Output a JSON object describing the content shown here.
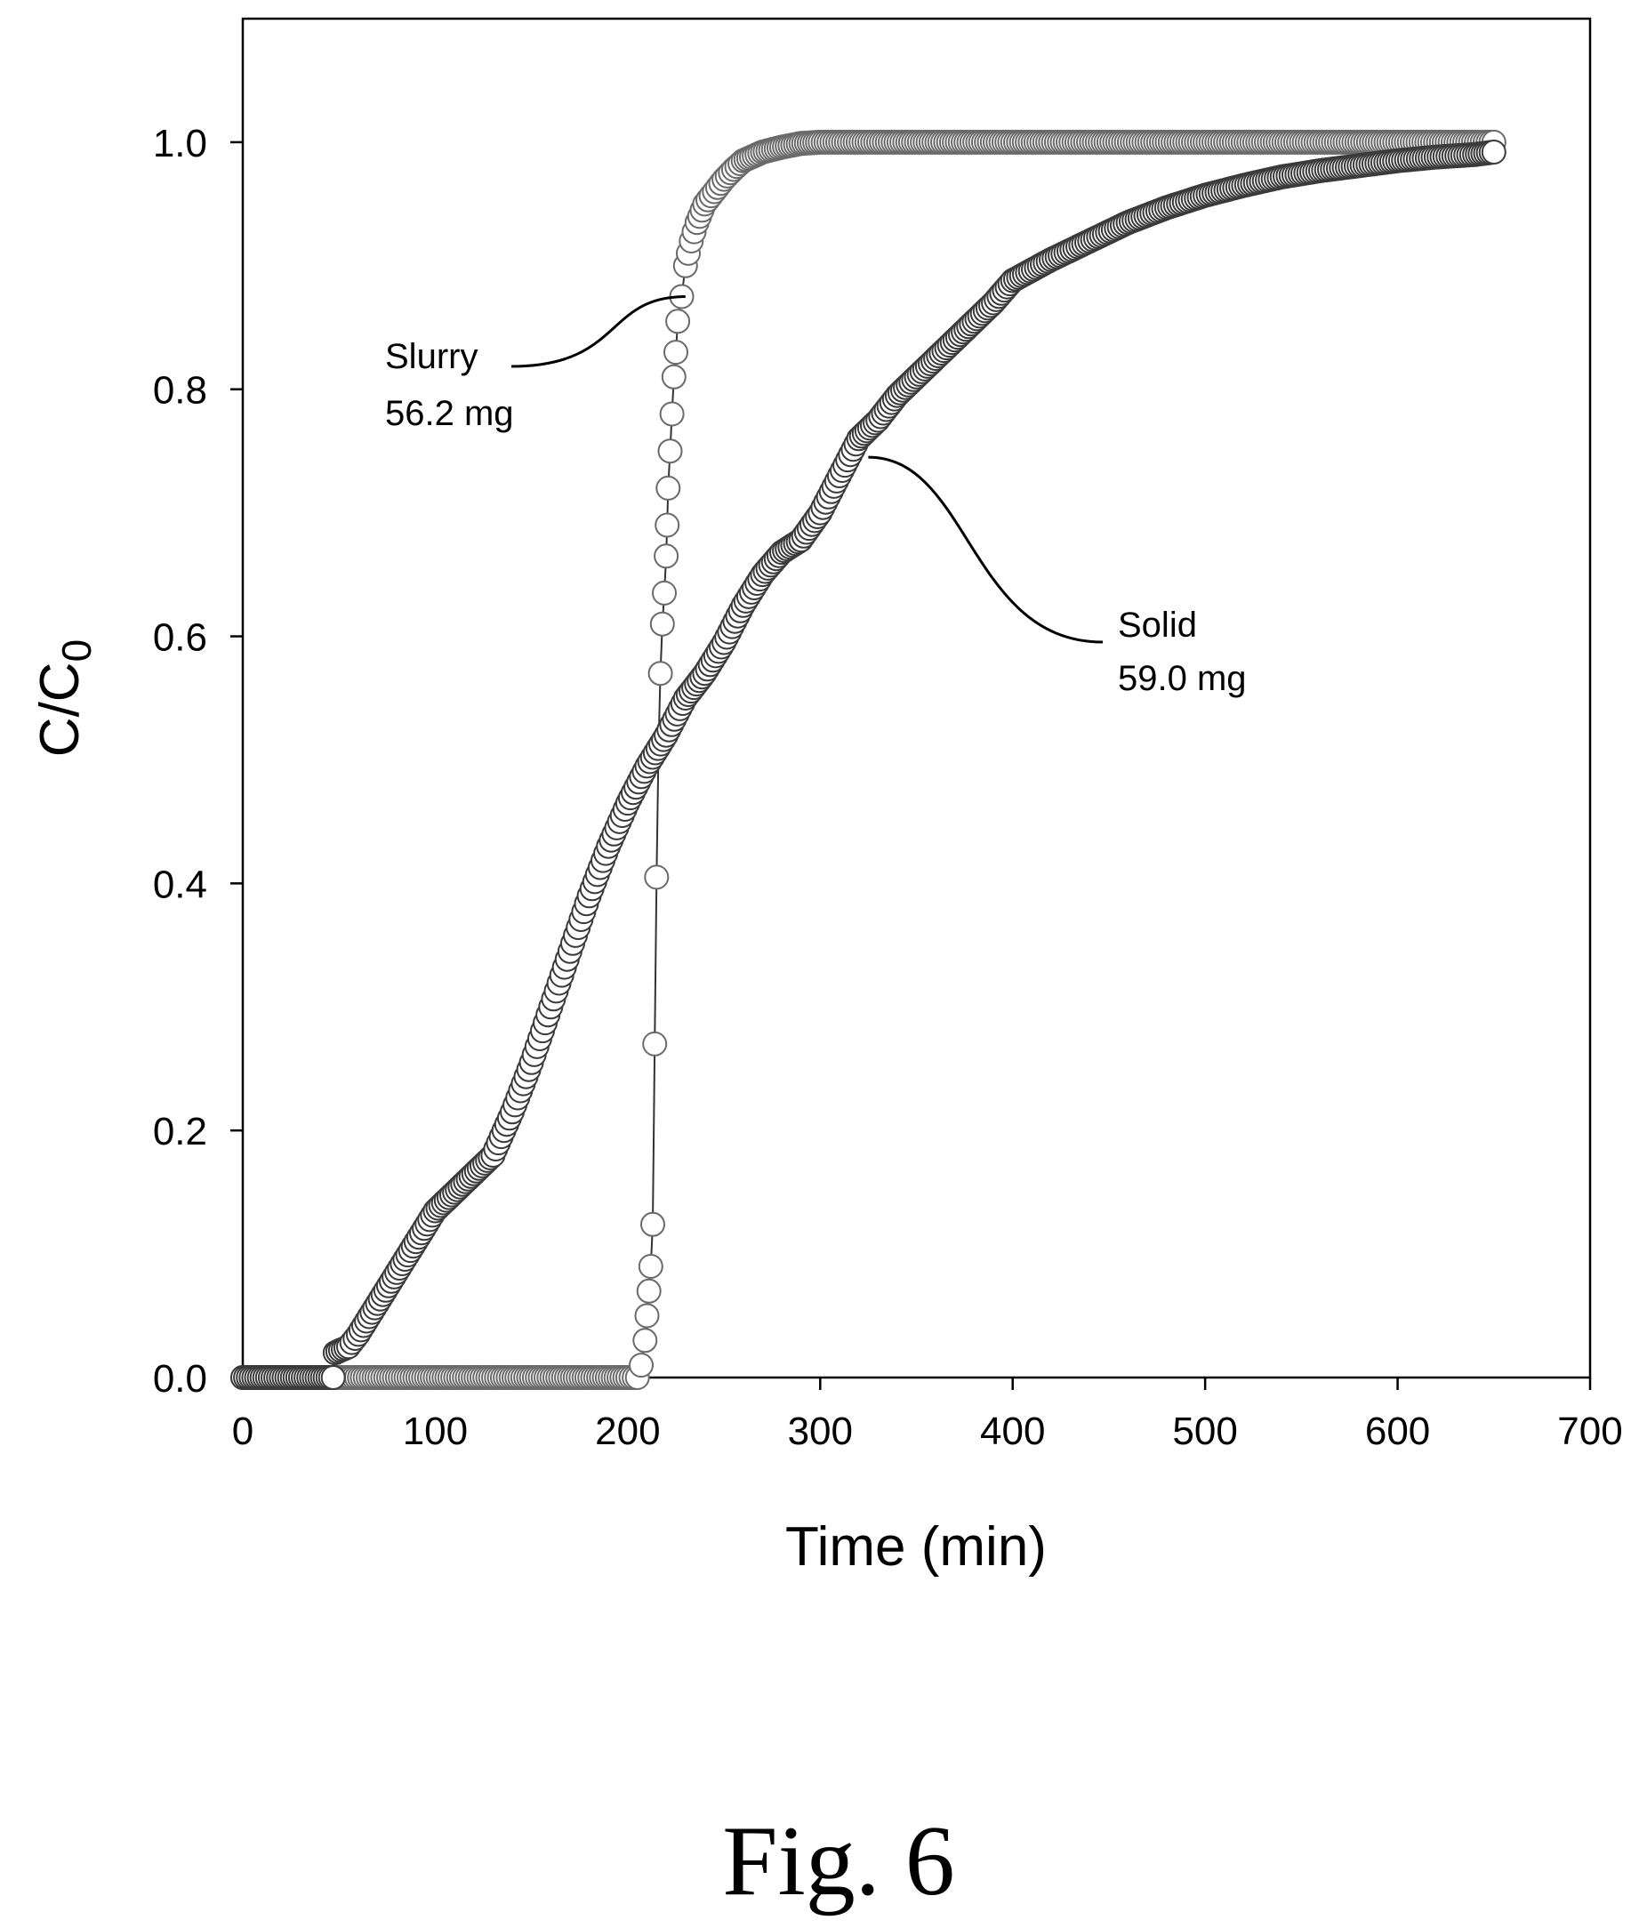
{
  "chart_data": {
    "type": "scatter",
    "xlabel": "Time (min)",
    "ylabel_main": "C/C",
    "ylabel_sub": "0",
    "xlim": [
      0,
      700
    ],
    "ylim": [
      0,
      1.1
    ],
    "xticks": [
      "0",
      "100",
      "200",
      "300",
      "400",
      "500",
      "600",
      "700"
    ],
    "yticks": [
      "0.0",
      "0.2",
      "0.4",
      "0.6",
      "0.8",
      "1.0"
    ],
    "xtick_values": [
      0,
      100,
      200,
      300,
      400,
      500,
      600,
      700
    ],
    "ytick_values": [
      0,
      0.2,
      0.4,
      0.6,
      0.8,
      1.0
    ],
    "grid": false,
    "series": [
      {
        "name": "Slurry",
        "mass": "56.2 mg",
        "marker_fill": "#ffffff",
        "line_color": "#333333",
        "points": [
          [
            0,
            0
          ],
          [
            50,
            0
          ],
          [
            100,
            0
          ],
          [
            150,
            0
          ],
          [
            200,
            0
          ],
          [
            205,
            0
          ],
          [
            207,
            0.01
          ],
          [
            209,
            0.03
          ],
          [
            210,
            0.05
          ],
          [
            211,
            0.07
          ],
          [
            212,
            0.09
          ],
          [
            213,
            0.124
          ],
          [
            214,
            0.27
          ],
          [
            215,
            0.405
          ],
          [
            216,
            0.51
          ],
          [
            217,
            0.57
          ],
          [
            218,
            0.61
          ],
          [
            219,
            0.635
          ],
          [
            220,
            0.665
          ],
          [
            220.5,
            0.69
          ],
          [
            221,
            0.72
          ],
          [
            222,
            0.75
          ],
          [
            223,
            0.78
          ],
          [
            224,
            0.81
          ],
          [
            225,
            0.83
          ],
          [
            226,
            0.855
          ],
          [
            228,
            0.875
          ],
          [
            230,
            0.9
          ],
          [
            233,
            0.92
          ],
          [
            236,
            0.935
          ],
          [
            240,
            0.95
          ],
          [
            245,
            0.96
          ],
          [
            250,
            0.97
          ],
          [
            255,
            0.978
          ],
          [
            260,
            0.985
          ],
          [
            270,
            0.992
          ],
          [
            280,
            0.996
          ],
          [
            290,
            0.999
          ],
          [
            300,
            1.0
          ],
          [
            350,
            1.0
          ],
          [
            400,
            1.0
          ],
          [
            450,
            1.0
          ],
          [
            500,
            1.0
          ],
          [
            550,
            1.0
          ],
          [
            600,
            1.0
          ],
          [
            650,
            1.0
          ]
        ]
      },
      {
        "name": "Solid",
        "mass": "59.0 mg",
        "marker_fill": "#ffffff",
        "line_color": "#333333",
        "points": [
          [
            0,
            0
          ],
          [
            10,
            0
          ],
          [
            20,
            0
          ],
          [
            30,
            0
          ],
          [
            40,
            0
          ],
          [
            47,
            0
          ],
          [
            48,
            0.02
          ],
          [
            55,
            0.025
          ],
          [
            60,
            0.035
          ],
          [
            70,
            0.06
          ],
          [
            80,
            0.085
          ],
          [
            90,
            0.11
          ],
          [
            100,
            0.135
          ],
          [
            110,
            0.15
          ],
          [
            120,
            0.165
          ],
          [
            130,
            0.18
          ],
          [
            140,
            0.215
          ],
          [
            150,
            0.255
          ],
          [
            160,
            0.3
          ],
          [
            170,
            0.345
          ],
          [
            180,
            0.39
          ],
          [
            190,
            0.43
          ],
          [
            200,
            0.465
          ],
          [
            210,
            0.495
          ],
          [
            220,
            0.52
          ],
          [
            230,
            0.55
          ],
          [
            240,
            0.57
          ],
          [
            250,
            0.595
          ],
          [
            260,
            0.625
          ],
          [
            270,
            0.65
          ],
          [
            280,
            0.668
          ],
          [
            290,
            0.678
          ],
          [
            300,
            0.7
          ],
          [
            310,
            0.73
          ],
          [
            320,
            0.76
          ],
          [
            330,
            0.775
          ],
          [
            340,
            0.795
          ],
          [
            350,
            0.81
          ],
          [
            360,
            0.825
          ],
          [
            370,
            0.84
          ],
          [
            380,
            0.855
          ],
          [
            390,
            0.87
          ],
          [
            400,
            0.888
          ],
          [
            420,
            0.905
          ],
          [
            440,
            0.92
          ],
          [
            460,
            0.935
          ],
          [
            480,
            0.947
          ],
          [
            500,
            0.957
          ],
          [
            520,
            0.965
          ],
          [
            540,
            0.972
          ],
          [
            560,
            0.977
          ],
          [
            580,
            0.981
          ],
          [
            600,
            0.985
          ],
          [
            620,
            0.988
          ],
          [
            640,
            0.99
          ],
          [
            650,
            0.992
          ]
        ]
      }
    ],
    "annotations": [
      {
        "name": "Slurry",
        "line1": "Slurry",
        "line2": "56.2 mg",
        "anchor": [
          230,
          0.875
        ]
      },
      {
        "name": "Solid",
        "line1": "Solid",
        "line2": "59.0 mg",
        "anchor": [
          325,
          0.745
        ]
      }
    ]
  },
  "caption": "Fig. 6"
}
